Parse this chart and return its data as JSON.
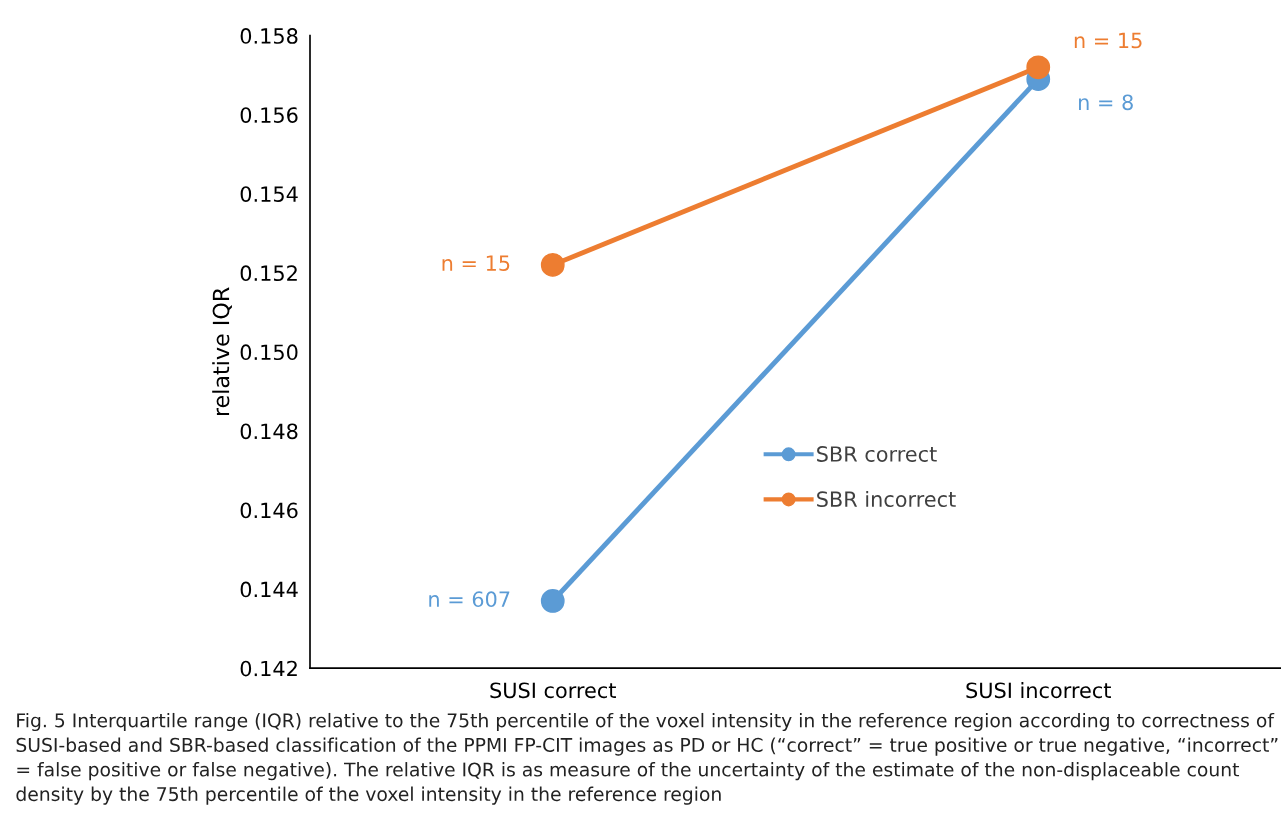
{
  "chart_data": {
    "type": "line",
    "ylabel": "relative IQR",
    "categories": [
      "SUSI correct",
      "SUSI incorrect"
    ],
    "series": [
      {
        "name": "SBR correct",
        "color": "#5b9bd5",
        "values": [
          0.1437,
          0.1569
        ]
      },
      {
        "name": "SBR incorrect",
        "color": "#ed7d31",
        "values": [
          0.1522,
          0.1572
        ]
      }
    ],
    "ylim": [
      0.142,
      0.158
    ],
    "yticks": [
      0.142,
      0.144,
      0.146,
      0.148,
      {
        "value": 0.15,
        "label": "0.150"
      },
      0.152,
      0.154,
      0.156,
      0.158
    ],
    "marker": "circle",
    "line_style": "solid",
    "grid": false,
    "legend": "center right",
    "annotations": [
      {
        "text": "n = 607",
        "x": "SUSI correct",
        "y": 0.1437
      },
      {
        "text": "n = 15",
        "x": "SUSI correct",
        "y": 0.1522
      },
      {
        "text": "n = 8",
        "x": "SUSI incorrect",
        "y": 0.1569
      },
      {
        "text": "n = 15",
        "x": "SUSI incorrect",
        "y": 0.1572
      },
      "Fig. 5 Interquartile range (IQR) relative to the 75th percentile of the voxel intensity in the reference region according to correctness of SUSI-based and SBR-based classification of the PPMI FP-CIT images as PD or HC (“correct” = true positive or true negative, “incorrect” = false positive or false negative). The relative IQR is as measure of the uncertainty of the estimate of the non-displaceable count density by the 75th percentile of the voxel intensity in the reference region"
    ]
  }
}
